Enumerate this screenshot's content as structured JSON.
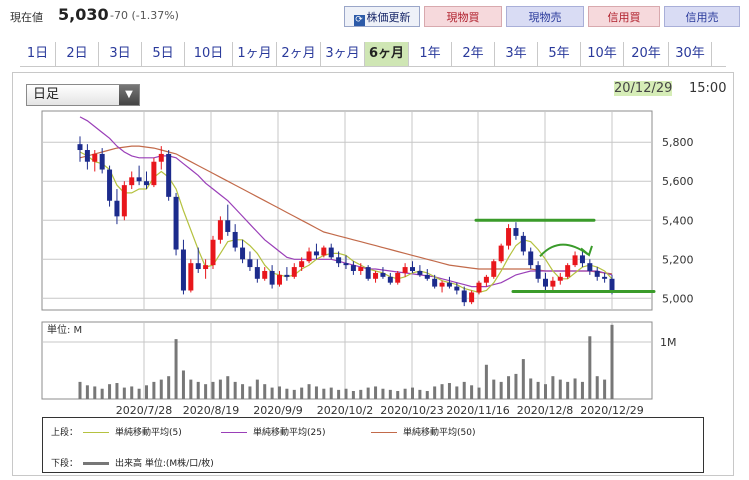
{
  "quote": {
    "label": "現在値",
    "price": "5,030",
    "change": "-70 (-1.37%)"
  },
  "buttons": {
    "refresh": "株価更新",
    "spot_buy": "現物買",
    "spot_sell": "現物売",
    "margin_buy": "信用買",
    "margin_sell": "信用売"
  },
  "tabs": [
    "1日",
    "2日",
    "3日",
    "5日",
    "10日",
    "1ヶ月",
    "2ヶ月",
    "3ヶ月",
    "6ヶ月",
    "1年",
    "2年",
    "3年",
    "5年",
    "10年",
    "20年",
    "30年"
  ],
  "active_tab": "6ヶ月",
  "interval": {
    "selected": "日足"
  },
  "as_of": {
    "date": "20/12/29",
    "time": "15:00"
  },
  "colors": {
    "up": "#e8161b",
    "down": "#1c2b8c",
    "ma5": "#b5c240",
    "ma25": "#9a3fb8",
    "ma50": "#c26a4a",
    "volume": "#777777",
    "annotation": "#3a9b2a"
  },
  "legend": {
    "upper_label": "上段：",
    "ma5": "単純移動平均(5)",
    "ma25": "単純移動平均(25)",
    "ma50": "単純移動平均(50)",
    "lower_label": "下段：",
    "volume": "出来高 単位:(M株/口/枚)"
  },
  "chart_data": {
    "type": "candlestick",
    "ylim": [
      4940,
      5960
    ],
    "y_ticks": [
      "5,800",
      "5,600",
      "5,400",
      "5,200",
      "5,000"
    ],
    "y_tick_values": [
      5800,
      5600,
      5400,
      5200,
      5000
    ],
    "x_labels": [
      "2020/7/28",
      "2020/8/19",
      "2020/9/9",
      "2020/10/2",
      "2020/10/23",
      "2020/11/16",
      "2020/12/8",
      "2020/12/29"
    ],
    "volume_unit_label": "単位: M",
    "volume_tick": "1M",
    "volume_ylim": [
      0,
      1.35
    ],
    "ohlc": [
      [
        5790,
        5830,
        5700,
        5760
      ],
      [
        5760,
        5790,
        5660,
        5700
      ],
      [
        5700,
        5760,
        5650,
        5740
      ],
      [
        5740,
        5770,
        5640,
        5660
      ],
      [
        5660,
        5680,
        5470,
        5500
      ],
      [
        5500,
        5560,
        5380,
        5420
      ],
      [
        5420,
        5600,
        5400,
        5580
      ],
      [
        5580,
        5650,
        5560,
        5620
      ],
      [
        5620,
        5680,
        5580,
        5600
      ],
      [
        5600,
        5650,
        5560,
        5580
      ],
      [
        5580,
        5720,
        5570,
        5700
      ],
      [
        5700,
        5780,
        5660,
        5740
      ],
      [
        5740,
        5760,
        5500,
        5520
      ],
      [
        5520,
        5540,
        5220,
        5250
      ],
      [
        5250,
        5300,
        5020,
        5040
      ],
      [
        5040,
        5200,
        5030,
        5180
      ],
      [
        5180,
        5260,
        5130,
        5150
      ],
      [
        5150,
        5200,
        5100,
        5170
      ],
      [
        5170,
        5320,
        5150,
        5300
      ],
      [
        5300,
        5420,
        5280,
        5400
      ],
      [
        5400,
        5480,
        5320,
        5340
      ],
      [
        5340,
        5380,
        5240,
        5260
      ],
      [
        5260,
        5300,
        5180,
        5200
      ],
      [
        5200,
        5240,
        5140,
        5160
      ],
      [
        5160,
        5200,
        5080,
        5100
      ],
      [
        5100,
        5160,
        5090,
        5140
      ],
      [
        5140,
        5170,
        5050,
        5070
      ],
      [
        5070,
        5140,
        5060,
        5120
      ],
      [
        5120,
        5160,
        5090,
        5110
      ],
      [
        5110,
        5180,
        5100,
        5160
      ],
      [
        5160,
        5210,
        5140,
        5190
      ],
      [
        5190,
        5260,
        5180,
        5240
      ],
      [
        5240,
        5280,
        5200,
        5220
      ],
      [
        5220,
        5270,
        5210,
        5260
      ],
      [
        5260,
        5280,
        5200,
        5210
      ],
      [
        5210,
        5240,
        5160,
        5180
      ],
      [
        5180,
        5220,
        5150,
        5170
      ],
      [
        5170,
        5190,
        5120,
        5140
      ],
      [
        5140,
        5180,
        5120,
        5160
      ],
      [
        5160,
        5170,
        5090,
        5100
      ],
      [
        5100,
        5140,
        5080,
        5130
      ],
      [
        5130,
        5160,
        5100,
        5110
      ],
      [
        5110,
        5130,
        5070,
        5080
      ],
      [
        5080,
        5140,
        5070,
        5130
      ],
      [
        5130,
        5180,
        5110,
        5160
      ],
      [
        5160,
        5190,
        5130,
        5140
      ],
      [
        5140,
        5170,
        5110,
        5120
      ],
      [
        5120,
        5150,
        5090,
        5100
      ],
      [
        5100,
        5120,
        5050,
        5060
      ],
      [
        5060,
        5090,
        5030,
        5080
      ],
      [
        5080,
        5110,
        5050,
        5060
      ],
      [
        5060,
        5080,
        5020,
        5040
      ],
      [
        5040,
        5060,
        4960,
        4980
      ],
      [
        4980,
        5040,
        4970,
        5030
      ],
      [
        5030,
        5090,
        5020,
        5080
      ],
      [
        5080,
        5120,
        5060,
        5110
      ],
      [
        5110,
        5200,
        5100,
        5190
      ],
      [
        5190,
        5280,
        5180,
        5270
      ],
      [
        5270,
        5380,
        5250,
        5360
      ],
      [
        5360,
        5390,
        5300,
        5320
      ],
      [
        5320,
        5340,
        5220,
        5240
      ],
      [
        5240,
        5260,
        5150,
        5170
      ],
      [
        5170,
        5190,
        5080,
        5100
      ],
      [
        5100,
        5130,
        5040,
        5060
      ],
      [
        5060,
        5110,
        5040,
        5090
      ],
      [
        5090,
        5130,
        5070,
        5110
      ],
      [
        5110,
        5180,
        5100,
        5170
      ],
      [
        5170,
        5240,
        5160,
        5220
      ],
      [
        5220,
        5240,
        5160,
        5180
      ],
      [
        5180,
        5200,
        5120,
        5140
      ],
      [
        5140,
        5160,
        5090,
        5110
      ],
      [
        5110,
        5130,
        5080,
        5100
      ],
      [
        5100,
        5120,
        5020,
        5030
      ]
    ],
    "volume": [
      0.3,
      0.24,
      0.22,
      0.18,
      0.26,
      0.28,
      0.2,
      0.22,
      0.18,
      0.24,
      0.3,
      0.34,
      0.4,
      1.05,
      0.5,
      0.34,
      0.3,
      0.26,
      0.3,
      0.34,
      0.4,
      0.3,
      0.26,
      0.22,
      0.34,
      0.26,
      0.2,
      0.22,
      0.18,
      0.16,
      0.2,
      0.26,
      0.22,
      0.18,
      0.2,
      0.16,
      0.18,
      0.14,
      0.16,
      0.2,
      0.22,
      0.18,
      0.16,
      0.14,
      0.18,
      0.2,
      0.16,
      0.14,
      0.22,
      0.26,
      0.28,
      0.22,
      0.3,
      0.24,
      0.2,
      0.6,
      0.34,
      0.3,
      0.4,
      0.44,
      0.7,
      0.36,
      0.3,
      0.26,
      0.4,
      0.34,
      0.3,
      0.36,
      0.3,
      1.1,
      0.4,
      0.34,
      1.3
    ],
    "ma5": [
      5750,
      5730,
      5700,
      5690,
      5660,
      5580,
      5540,
      5540,
      5560,
      5560,
      5620,
      5650,
      5620,
      5560,
      5450,
      5350,
      5250,
      5160,
      5170,
      5230,
      5290,
      5300,
      5300,
      5270,
      5230,
      5170,
      5130,
      5120,
      5110,
      5120,
      5150,
      5170,
      5200,
      5220,
      5230,
      5230,
      5220,
      5190,
      5170,
      5150,
      5140,
      5130,
      5110,
      5100,
      5110,
      5130,
      5140,
      5130,
      5110,
      5090,
      5080,
      5070,
      5050,
      5040,
      5030,
      5040,
      5080,
      5140,
      5210,
      5270,
      5300,
      5290,
      5250,
      5200,
      5140,
      5100,
      5100,
      5130,
      5160,
      5170,
      5160,
      5140,
      5100
    ],
    "ma25": [
      5930,
      5910,
      5880,
      5850,
      5820,
      5780,
      5750,
      5730,
      5720,
      5720,
      5720,
      5730,
      5730,
      5720,
      5690,
      5660,
      5630,
      5590,
      5560,
      5530,
      5500,
      5460,
      5420,
      5380,
      5340,
      5300,
      5270,
      5240,
      5210,
      5200,
      5200,
      5200,
      5200,
      5200,
      5200,
      5190,
      5180,
      5170,
      5160,
      5150,
      5150,
      5145,
      5140,
      5135,
      5130,
      5125,
      5120,
      5115,
      5110,
      5100,
      5090,
      5080,
      5070,
      5060,
      5060,
      5060,
      5070,
      5080,
      5100,
      5120,
      5130,
      5140,
      5140,
      5140,
      5140,
      5140,
      5140,
      5140,
      5140,
      5140,
      5140,
      5130,
      5120
    ],
    "ma50": [
      5720,
      5730,
      5740,
      5750,
      5760,
      5770,
      5775,
      5780,
      5780,
      5775,
      5770,
      5760,
      5750,
      5740,
      5720,
      5700,
      5680,
      5660,
      5640,
      5620,
      5600,
      5580,
      5560,
      5540,
      5520,
      5500,
      5480,
      5460,
      5440,
      5420,
      5400,
      5380,
      5360,
      5340,
      5330,
      5320,
      5310,
      5300,
      5290,
      5280,
      5270,
      5260,
      5250,
      5240,
      5230,
      5220,
      5210,
      5200,
      5190,
      5180,
      5170,
      5165,
      5160,
      5155,
      5150,
      5150,
      5150,
      5150,
      5150,
      5150,
      5150,
      5150,
      5145,
      5140,
      5140,
      5140,
      5140,
      5140,
      5140,
      5140,
      5135,
      5130,
      5125
    ]
  }
}
